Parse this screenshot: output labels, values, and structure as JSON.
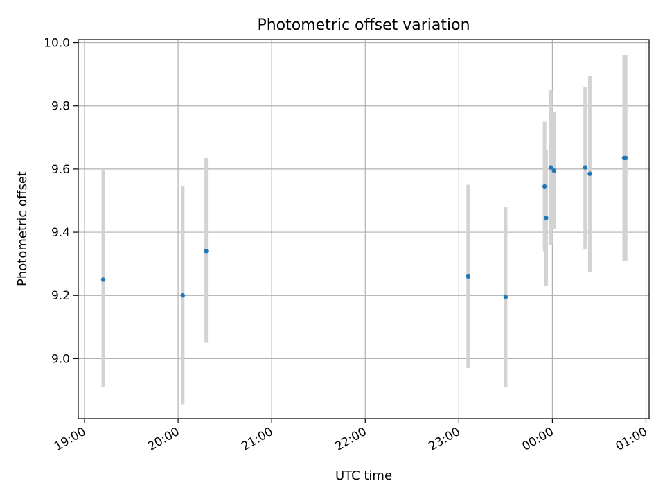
{
  "chart_data": {
    "type": "scatter",
    "title": "Photometric offset variation",
    "xlabel": "UTC time",
    "ylabel": "Photometric offset",
    "x_ticks": [
      "19:00",
      "20:00",
      "21:00",
      "22:00",
      "23:00",
      "00:00",
      "01:00"
    ],
    "y_ticks": [
      "9.0",
      "9.2",
      "9.4",
      "9.6",
      "9.8",
      "10.0"
    ],
    "xlim": [
      "18:56",
      "01:02"
    ],
    "ylim": [
      8.81,
      10.01
    ],
    "grid": true,
    "marker_color": "#1f77b4",
    "errorbar_color": "#d3d3d3",
    "points": [
      {
        "time": "19:12",
        "value": 9.25,
        "low": 8.91,
        "high": 9.595
      },
      {
        "time": "20:03",
        "value": 9.2,
        "low": 8.855,
        "high": 9.545
      },
      {
        "time": "20:18",
        "value": 9.34,
        "low": 9.05,
        "high": 9.635
      },
      {
        "time": "23:06",
        "value": 9.26,
        "low": 8.97,
        "high": 9.55
      },
      {
        "time": "23:30",
        "value": 9.195,
        "low": 8.91,
        "high": 9.48
      },
      {
        "time": "23:55",
        "value": 9.545,
        "low": 9.34,
        "high": 9.75
      },
      {
        "time": "23:56",
        "value": 9.445,
        "low": 9.23,
        "high": 9.66
      },
      {
        "time": "23:59",
        "value": 9.605,
        "low": 9.36,
        "high": 9.85
      },
      {
        "time": "00:01",
        "value": 9.595,
        "low": 9.41,
        "high": 9.78
      },
      {
        "time": "00:21",
        "value": 9.605,
        "low": 9.345,
        "high": 9.86
      },
      {
        "time": "00:24",
        "value": 9.585,
        "low": 9.275,
        "high": 9.895
      },
      {
        "time": "00:46",
        "value": 9.635,
        "low": 9.31,
        "high": 9.96
      },
      {
        "time": "00:47",
        "value": 9.635,
        "low": 9.31,
        "high": 9.96
      }
    ]
  }
}
